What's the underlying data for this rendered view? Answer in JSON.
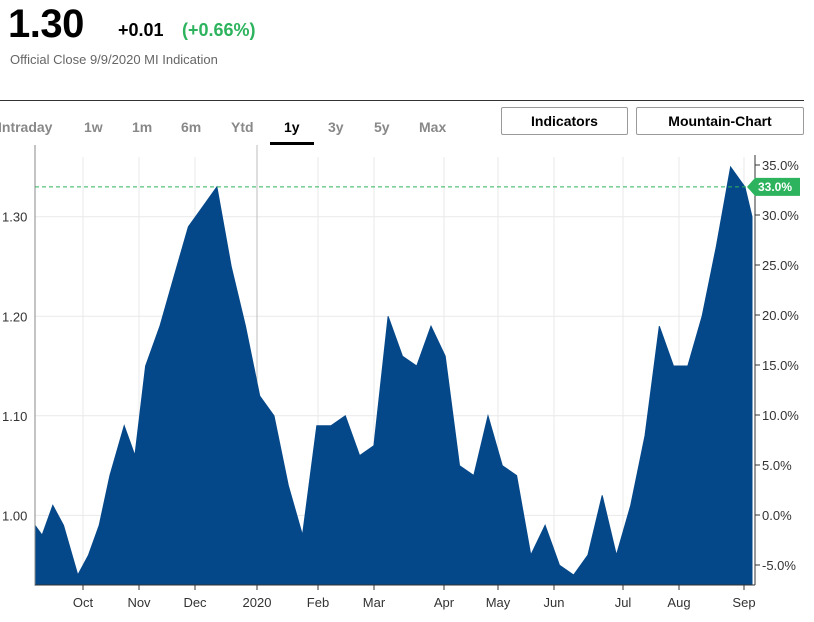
{
  "header": {
    "price": "1.30",
    "change": "+0.01",
    "change_pct": "(+0.66%)",
    "subtitle": "Official Close 9/9/2020 MI Indication"
  },
  "tabs": [
    {
      "label": "Intraday",
      "active": false
    },
    {
      "label": "1w",
      "active": false
    },
    {
      "label": "1m",
      "active": false
    },
    {
      "label": "6m",
      "active": false
    },
    {
      "label": "Ytd",
      "active": false
    },
    {
      "label": "1y",
      "active": true
    },
    {
      "label": "3y",
      "active": false
    },
    {
      "label": "5y",
      "active": false
    },
    {
      "label": "Max",
      "active": false
    }
  ],
  "buttons": {
    "indicators": "Indicators",
    "mountain_chart": "Mountain-Chart"
  },
  "colors": {
    "fill": "#05488a",
    "positive": "#2db35d",
    "reference_line": "#2db35d",
    "grid": "#e9e9e9"
  },
  "chart_data": {
    "type": "area",
    "x_tick_labels": [
      "Oct",
      "Nov",
      "Dec",
      "2020",
      "Feb",
      "Mar",
      "Apr",
      "May",
      "Jun",
      "Jul",
      "Aug",
      "Sep"
    ],
    "left_axis": {
      "ticks": [
        1.0,
        1.1,
        1.2,
        1.3
      ],
      "tick_labels": [
        "1.00",
        "1.10",
        "1.20",
        "1.30"
      ],
      "range": [
        0.93,
        1.36
      ]
    },
    "right_axis": {
      "ticks": [
        -5,
        0,
        5,
        10,
        15,
        20,
        25,
        30,
        35
      ],
      "tick_labels": [
        "-5.0%",
        "0.0%",
        "5.0%",
        "10.0%",
        "15.0%",
        "20.0%",
        "25.0%",
        "30.0%",
        "35.0%"
      ]
    },
    "reference_value": 1.33,
    "reference_label": "33.0%",
    "grid": true,
    "series": [
      {
        "values": [
          [
            0.0,
            0.99
          ],
          [
            0.02,
            0.98
          ],
          [
            0.05,
            1.01
          ],
          [
            0.08,
            0.99
          ],
          [
            0.12,
            0.94
          ],
          [
            0.15,
            0.96
          ],
          [
            0.18,
            0.99
          ],
          [
            0.21,
            1.04
          ],
          [
            0.25,
            1.09
          ],
          [
            0.28,
            1.06
          ],
          [
            0.31,
            1.15
          ],
          [
            0.35,
            1.19
          ],
          [
            0.39,
            1.24
          ],
          [
            0.43,
            1.29
          ],
          [
            0.47,
            1.31
          ],
          [
            0.51,
            1.33
          ],
          [
            0.55,
            1.25
          ],
          [
            0.59,
            1.19
          ],
          [
            0.63,
            1.12
          ],
          [
            0.67,
            1.1
          ],
          [
            0.71,
            1.03
          ],
          [
            0.75,
            0.98
          ],
          [
            0.79,
            1.09
          ],
          [
            0.83,
            1.09
          ],
          [
            0.87,
            1.1
          ],
          [
            0.91,
            1.06
          ],
          [
            0.95,
            1.07
          ],
          [
            0.99,
            1.2
          ],
          [
            1.03,
            1.16
          ],
          [
            1.07,
            1.15
          ],
          [
            1.11,
            1.19
          ],
          [
            1.15,
            1.16
          ],
          [
            1.19,
            1.05
          ],
          [
            1.23,
            1.04
          ],
          [
            1.27,
            1.1
          ],
          [
            1.31,
            1.05
          ],
          [
            1.35,
            1.04
          ],
          [
            1.39,
            0.96
          ],
          [
            1.43,
            0.99
          ],
          [
            1.47,
            0.95
          ],
          [
            1.51,
            0.94
          ],
          [
            1.55,
            0.96
          ],
          [
            1.59,
            1.02
          ],
          [
            1.63,
            0.96
          ],
          [
            1.67,
            1.01
          ],
          [
            1.71,
            1.08
          ],
          [
            1.75,
            1.19
          ],
          [
            1.79,
            1.15
          ],
          [
            1.83,
            1.15
          ],
          [
            1.87,
            1.2
          ],
          [
            1.91,
            1.27
          ],
          [
            1.95,
            1.35
          ],
          [
            1.99,
            1.33
          ],
          [
            2.01,
            1.3
          ]
        ]
      }
    ]
  }
}
